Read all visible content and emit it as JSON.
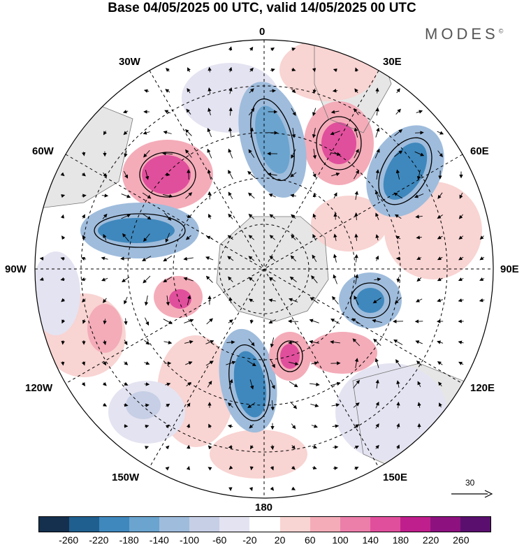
{
  "title": "Base 04/05/2025 00 UTC, valid 14/05/2025 00 UTC",
  "brand": "MODES",
  "brand_mark": "©",
  "longitude_labels": {
    "lon_0": "0",
    "lon_30e": "30E",
    "lon_60e": "60E",
    "lon_90e": "90E",
    "lon_120e": "120E",
    "lon_150e": "150E",
    "lon_180": "180",
    "lon_150w": "150W",
    "lon_120w": "120W",
    "lon_90w": "90W",
    "lon_60w": "60W",
    "lon_30w": "30W"
  },
  "reference_vector": {
    "label": "30"
  },
  "colorbar": {
    "colors": [
      "#15304f",
      "#1f5f8f",
      "#3f88bd",
      "#6aa4cf",
      "#9fbcdc",
      "#c6cfe5",
      "#e4e3f1",
      "#ffffff",
      "#f8d4d2",
      "#f4acb9",
      "#ec7eaa",
      "#e04f9c",
      "#bf1f8c",
      "#8d1280",
      "#5a0f6f"
    ],
    "ticks": [
      "-260",
      "-220",
      "-180",
      "-140",
      "-100",
      "-60",
      "-20",
      "20",
      "60",
      "100",
      "140",
      "180",
      "220",
      "260"
    ]
  },
  "anomaly_colors": {
    "strong_neg": "#3f88bd",
    "neg": "#9fbcdc",
    "weak_neg": "#e4e3f1",
    "weak_pos": "#f8d4d2",
    "pos": "#f4acb9",
    "strong_pos": "#e04f9c",
    "land": "#e6e6e6"
  }
}
